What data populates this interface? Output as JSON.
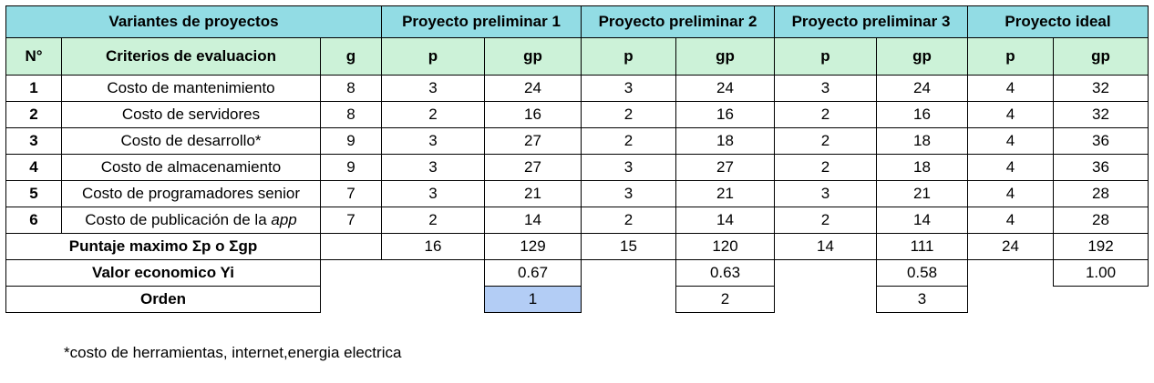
{
  "header": {
    "variants": "Variantes de proyectos",
    "projects": [
      "Proyecto preliminar 1",
      "Proyecto preliminar 2",
      "Proyecto preliminar 3",
      "Proyecto ideal"
    ]
  },
  "subheader": {
    "no": "N°",
    "criteria": "Criterios de evaluacion",
    "g": "g",
    "p": "p",
    "gp": "gp"
  },
  "rows": [
    {
      "n": "1",
      "criterio": "Costo de mantenimiento",
      "g": "8",
      "vals": [
        "3",
        "24",
        "3",
        "24",
        "3",
        "24",
        "4",
        "32"
      ]
    },
    {
      "n": "2",
      "criterio": "Costo de servidores",
      "g": "8",
      "vals": [
        "2",
        "16",
        "2",
        "16",
        "2",
        "16",
        "4",
        "32"
      ]
    },
    {
      "n": "3",
      "criterio": "Costo  de desarrollo*",
      "g": "9",
      "vals": [
        "3",
        "27",
        "2",
        "18",
        "2",
        "18",
        "4",
        "36"
      ]
    },
    {
      "n": "4",
      "criterio": "Costo de almacenamiento",
      "g": "9",
      "vals": [
        "3",
        "27",
        "3",
        "27",
        "2",
        "18",
        "4",
        "36"
      ]
    },
    {
      "n": "5",
      "criterio": "Costo de programadores senior",
      "g": "7",
      "vals": [
        "3",
        "21",
        "3",
        "21",
        "3",
        "21",
        "4",
        "28"
      ]
    },
    {
      "n": "6",
      "criterio": "Costo de publicación de la ",
      "criterio_italic": "app",
      "g": "7",
      "vals": [
        "2",
        "14",
        "2",
        "14",
        "2",
        "14",
        "4",
        "28"
      ]
    }
  ],
  "summary": {
    "puntaje_label": "Puntaje maximo Σp o Σgp",
    "puntaje": [
      "16",
      "129",
      "15",
      "120",
      "14",
      "111",
      "24",
      "192"
    ],
    "valor_label": "Valor economico Yi",
    "valor": [
      "0.67",
      "0.63",
      "0.58",
      "1.00"
    ],
    "orden_label": "Orden",
    "orden": [
      "1",
      "2",
      "3"
    ]
  },
  "colors": {
    "header": "#92dce4",
    "subheader": "#ccf2d8",
    "highlight": "#b3cdf5"
  },
  "footnote": "*costo de herramientas, internet,energia electrica"
}
